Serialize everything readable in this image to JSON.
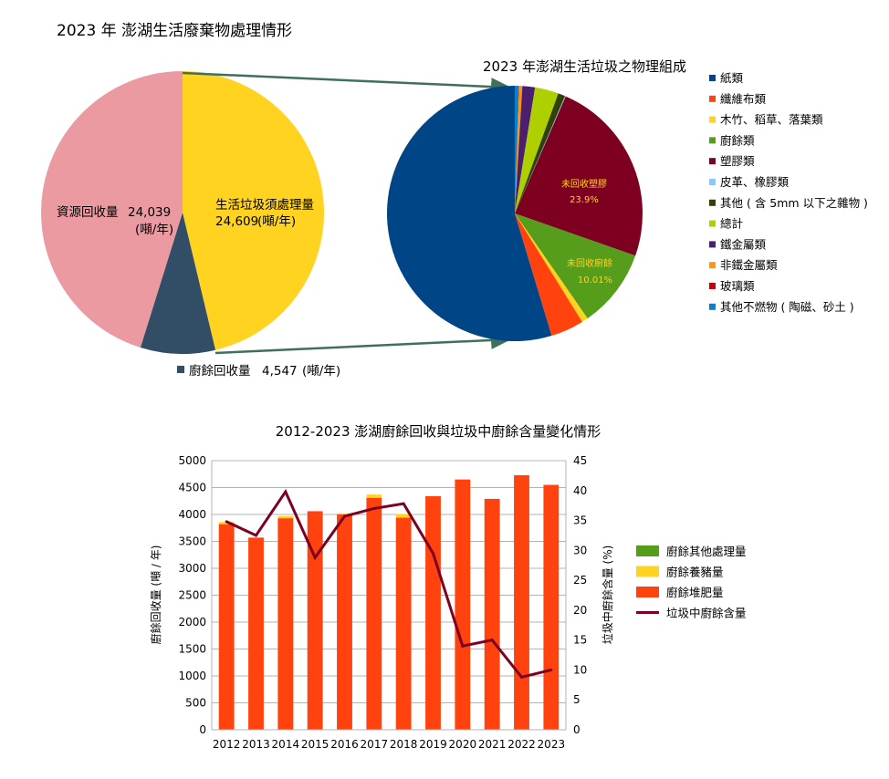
{
  "chart_data": [
    {
      "type": "pie",
      "title": "2023 年 澎湖生活廢棄物處理情形",
      "slices": [
        {
          "label": "生活垃圾須處理量",
          "value": 24609,
          "unit": "(噸/年)",
          "color": "#FFD320"
        },
        {
          "label": "廚餘回收量",
          "value": 4547,
          "unit": "(噸/年)",
          "color": "#314E66"
        },
        {
          "label": "資源回收量",
          "value": 24039,
          "unit": "(噸/年)",
          "color": "#EB9AA2"
        }
      ],
      "labels": {
        "main": "生活垃圾須處理量",
        "main_value": "24,609",
        "recycle": "資源回收量",
        "recycle_value": "24,039",
        "kitchen": "廚餘回收量",
        "kitchen_value": "4,547",
        "unit": "(噸/年)"
      }
    },
    {
      "type": "pie",
      "title": "2023 年澎湖生活垃圾之物理組成",
      "slices": [
        {
          "label": "紙類",
          "value": 54.8,
          "color": "#004586"
        },
        {
          "label": "纖維布類",
          "value": 4.2,
          "color": "#FF420E"
        },
        {
          "label": "木竹、稻草、落葉類",
          "value": 0.8,
          "color": "#FFD320"
        },
        {
          "label": "廚餘類",
          "value": 10.01,
          "color": "#579D1C"
        },
        {
          "label": "塑膠類",
          "value": 23.9,
          "color": "#7E0021"
        },
        {
          "label": "皮革、橡膠類",
          "value": 0.1,
          "color": "#83CAFF"
        },
        {
          "label": "其他 ( 含 5mm 以下之雜物 )",
          "value": 0.9,
          "color": "#314004"
        },
        {
          "label": "總計",
          "value": 3.0,
          "color": "#AECF00"
        },
        {
          "label": "鐵金屬類",
          "value": 1.6,
          "color": "#4B1F6F"
        },
        {
          "label": "非鐵金屬類",
          "value": 0.4,
          "color": "#FF950E"
        },
        {
          "label": "玻璃類",
          "value": 0.05,
          "color": "#C5000B"
        },
        {
          "label": "其他不燃物 ( 陶磁、砂土 )",
          "value": 0.5,
          "color": "#0084D1"
        }
      ],
      "annotations": [
        {
          "text": "未回收塑膠",
          "value": "23.9%"
        },
        {
          "text": "未回收廚餘",
          "value": "10.01%"
        }
      ]
    },
    {
      "type": "bar",
      "title": "2012-2023 澎湖廚餘回收與垃圾中廚餘含量變化情形",
      "ylabel": "廚餘回收量 (噸 / 年)",
      "y2label": "垃圾中廚餘含量 (%)",
      "ylim": [
        0,
        5000
      ],
      "y2lim": [
        0,
        45
      ],
      "yticks": [
        "0",
        "500",
        "1000",
        "1500",
        "2000",
        "2500",
        "3000",
        "3500",
        "4000",
        "4500",
        "5000"
      ],
      "y2ticks": [
        "0",
        "5",
        "10",
        "15",
        "20",
        "25",
        "30",
        "35",
        "40",
        "45"
      ],
      "categories": [
        "2012",
        "2013",
        "2014",
        "2015",
        "2016",
        "2017",
        "2018",
        "2019",
        "2020",
        "2021",
        "2022",
        "2023"
      ],
      "series": [
        {
          "name": "廚餘其他處理量",
          "kind": "bar",
          "color": "#579D1C",
          "values": [
            0,
            0,
            0,
            0,
            0,
            0,
            0,
            0,
            0,
            0,
            0,
            0
          ]
        },
        {
          "name": "廚餘養豬量",
          "kind": "bar",
          "color": "#FFD320",
          "values": [
            40,
            0,
            40,
            0,
            20,
            60,
            70,
            0,
            0,
            0,
            0,
            0
          ]
        },
        {
          "name": "廚餘堆肥量",
          "kind": "bar",
          "color": "#FF420E",
          "values": [
            3820,
            3570,
            3930,
            4060,
            4000,
            4310,
            3940,
            4340,
            4650,
            4290,
            4730,
            4550
          ]
        },
        {
          "name": "垃圾中廚餘含量",
          "kind": "line",
          "axis": "y2",
          "color": "#7E0021",
          "values": [
            34.8,
            32.5,
            39.8,
            28.8,
            35.7,
            37.0,
            37.8,
            29.5,
            14.0,
            15.0,
            8.8,
            10.0
          ]
        }
      ],
      "legend": "right"
    }
  ]
}
